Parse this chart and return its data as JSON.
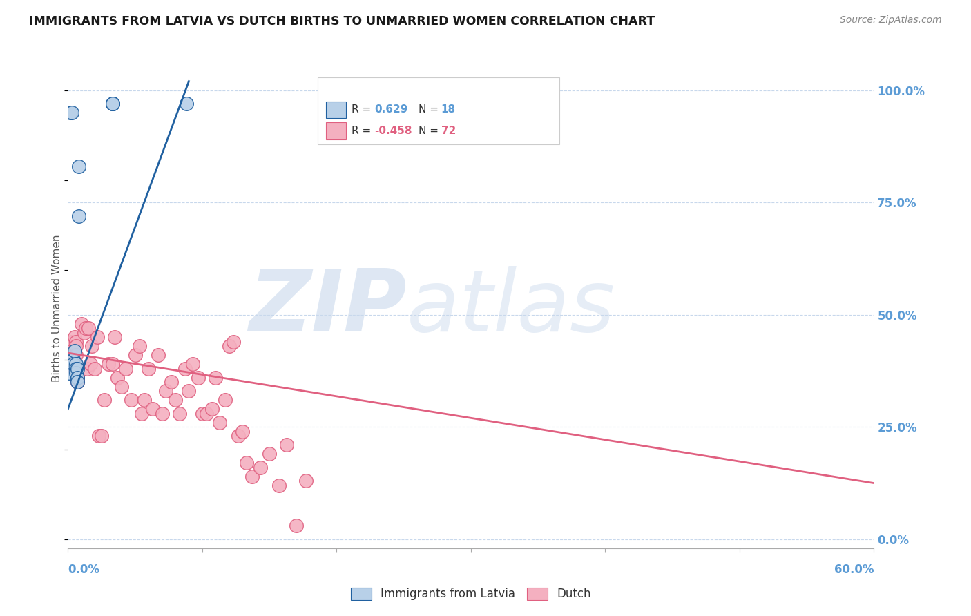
{
  "title": "IMMIGRANTS FROM LATVIA VS DUTCH BIRTHS TO UNMARRIED WOMEN CORRELATION CHART",
  "source": "Source: ZipAtlas.com",
  "ylabel": "Births to Unmarried Women",
  "ytick_labels": [
    "100.0%",
    "75.0%",
    "50.0%",
    "25.0%",
    "0.0%"
  ],
  "ytick_values": [
    1.0,
    0.75,
    0.5,
    0.25,
    0.0
  ],
  "color_blue": "#b8d0e8",
  "color_blue_line": "#2060a0",
  "color_pink": "#f4b0c0",
  "color_pink_line": "#e06080",
  "color_axis_label": "#5b9bd5",
  "color_grid": "#c8d8ec",
  "watermark_zip": "ZIP",
  "watermark_atlas": "atlas",
  "blue_scatter_x": [
    0.001,
    0.002,
    0.003,
    0.004,
    0.004,
    0.005,
    0.006,
    0.006,
    0.006,
    0.007,
    0.007,
    0.007,
    0.008,
    0.008,
    0.033,
    0.033,
    0.033,
    0.088
  ],
  "blue_scatter_y": [
    0.37,
    0.95,
    0.95,
    0.4,
    0.39,
    0.42,
    0.39,
    0.38,
    0.37,
    0.38,
    0.36,
    0.35,
    0.83,
    0.72,
    0.97,
    0.97,
    0.97,
    0.97
  ],
  "pink_scatter_x": [
    0.001,
    0.002,
    0.002,
    0.003,
    0.003,
    0.003,
    0.003,
    0.004,
    0.004,
    0.004,
    0.005,
    0.005,
    0.005,
    0.006,
    0.006,
    0.006,
    0.007,
    0.007,
    0.007,
    0.01,
    0.012,
    0.013,
    0.014,
    0.015,
    0.017,
    0.018,
    0.02,
    0.022,
    0.023,
    0.025,
    0.027,
    0.03,
    0.033,
    0.035,
    0.037,
    0.04,
    0.043,
    0.047,
    0.05,
    0.053,
    0.055,
    0.057,
    0.06,
    0.063,
    0.067,
    0.07,
    0.073,
    0.077,
    0.08,
    0.083,
    0.087,
    0.09,
    0.093,
    0.097,
    0.1,
    0.103,
    0.107,
    0.11,
    0.113,
    0.117,
    0.12,
    0.123,
    0.127,
    0.13,
    0.133,
    0.137,
    0.143,
    0.15,
    0.157,
    0.163,
    0.17,
    0.177
  ],
  "pink_scatter_y": [
    0.4,
    0.42,
    0.41,
    0.43,
    0.44,
    0.4,
    0.42,
    0.4,
    0.39,
    0.41,
    0.39,
    0.45,
    0.38,
    0.44,
    0.43,
    0.41,
    0.36,
    0.35,
    0.36,
    0.48,
    0.46,
    0.47,
    0.38,
    0.47,
    0.39,
    0.43,
    0.38,
    0.45,
    0.23,
    0.23,
    0.31,
    0.39,
    0.39,
    0.45,
    0.36,
    0.34,
    0.38,
    0.31,
    0.41,
    0.43,
    0.28,
    0.31,
    0.38,
    0.29,
    0.41,
    0.28,
    0.33,
    0.35,
    0.31,
    0.28,
    0.38,
    0.33,
    0.39,
    0.36,
    0.28,
    0.28,
    0.29,
    0.36,
    0.26,
    0.31,
    0.43,
    0.44,
    0.23,
    0.24,
    0.17,
    0.14,
    0.16,
    0.19,
    0.12,
    0.21,
    0.03,
    0.13
  ],
  "blue_trend_x": [
    0.0,
    0.09
  ],
  "blue_trend_y": [
    0.29,
    1.02
  ],
  "pink_trend_x": [
    0.0,
    0.6
  ],
  "pink_trend_y": [
    0.415,
    0.125
  ],
  "xlim": [
    0.0,
    0.6
  ],
  "ylim": [
    -0.02,
    1.05
  ],
  "xtick_positions": [
    0.0,
    0.1,
    0.2,
    0.3,
    0.4,
    0.5,
    0.6
  ]
}
